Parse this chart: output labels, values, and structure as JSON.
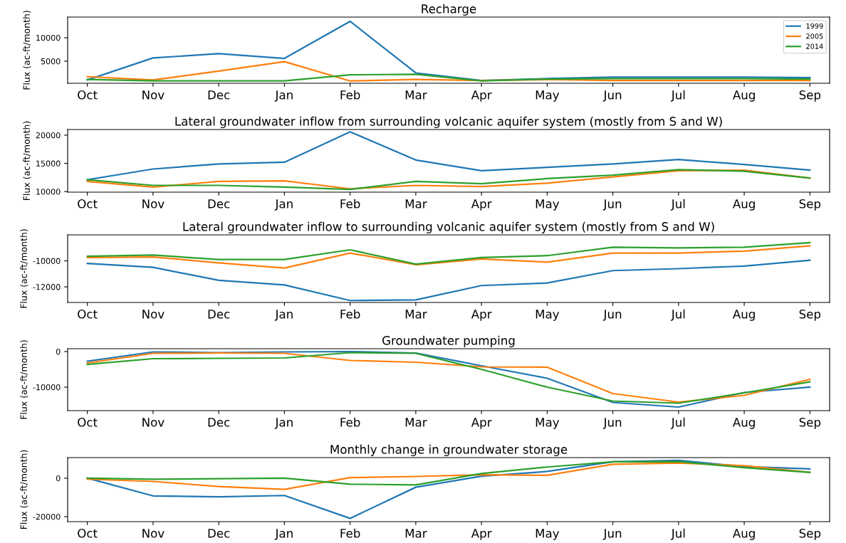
{
  "chart_data": [
    {
      "type": "line",
      "title": "Recharge",
      "ylabel": "Flux (ac-ft/month)",
      "categories": [
        "Oct",
        "Nov",
        "Dec",
        "Jan",
        "Feb",
        "Mar",
        "Apr",
        "May",
        "Jun",
        "Jul",
        "Aug",
        "Sep"
      ],
      "ylim": [
        300,
        14400
      ],
      "yticks": [
        5000,
        10000
      ],
      "legend": "top right",
      "grid": false,
      "series": [
        {
          "name": "1999",
          "color": "#1f77b4",
          "values": [
            1000,
            5700,
            6600,
            5600,
            13500,
            2500,
            900,
            1300,
            1600,
            1600,
            1600,
            1500
          ]
        },
        {
          "name": "2005",
          "color": "#ff7f0e",
          "values": [
            1700,
            1000,
            2900,
            4900,
            800,
            1100,
            900,
            1100,
            900,
            900,
            900,
            900
          ]
        },
        {
          "name": "2014",
          "color": "#2ca02c",
          "values": [
            1100,
            800,
            800,
            800,
            2100,
            2200,
            800,
            1200,
            1300,
            1300,
            1300,
            1200
          ]
        }
      ]
    },
    {
      "type": "line",
      "title": "Lateral groundwater inflow from surrounding volcanic aquifer system (mostly from S and W)",
      "ylabel": "Flux (ac-ft/month)",
      "categories": [
        "Oct",
        "Nov",
        "Dec",
        "Jan",
        "Feb",
        "Mar",
        "Apr",
        "May",
        "Jun",
        "Jul",
        "Aug",
        "Sep"
      ],
      "ylim": [
        9900,
        21000
      ],
      "yticks": [
        10000,
        15000,
        20000
      ],
      "grid": false,
      "series": [
        {
          "color": "#1f77b4",
          "values": [
            12100,
            14000,
            14900,
            15200,
            20600,
            15600,
            13700,
            14300,
            14900,
            15700,
            14800,
            13800
          ]
        },
        {
          "color": "#ff7f0e",
          "values": [
            11800,
            10800,
            11800,
            11900,
            10500,
            11100,
            10900,
            11500,
            12600,
            13700,
            13800,
            12400
          ]
        },
        {
          "color": "#2ca02c",
          "values": [
            12100,
            11100,
            11100,
            10800,
            10400,
            11800,
            11400,
            12300,
            12900,
            13900,
            13600,
            12400
          ]
        }
      ]
    },
    {
      "type": "line",
      "title": "Lateral groundwater inflow to surrounding volcanic aquifer system (mostly from S and W)",
      "ylabel": "Flux (ac-ft/month)",
      "categories": [
        "Oct",
        "Nov",
        "Dec",
        "Jan",
        "Feb",
        "Mar",
        "Apr",
        "May",
        "Jun",
        "Jul",
        "Aug",
        "Sep"
      ],
      "ylim": [
        -13200,
        -8000
      ],
      "yticks": [
        -12000,
        -10000
      ],
      "grid": false,
      "series": [
        {
          "color": "#1f77b4",
          "values": [
            -10200,
            -10500,
            -11500,
            -11850,
            -13050,
            -13000,
            -11900,
            -11700,
            -10750,
            -10600,
            -10400,
            -9950
          ]
        },
        {
          "color": "#ff7f0e",
          "values": [
            -9750,
            -9700,
            -10150,
            -10550,
            -9400,
            -10300,
            -9850,
            -10100,
            -9400,
            -9400,
            -9250,
            -8850
          ]
        },
        {
          "color": "#2ca02c",
          "values": [
            -9650,
            -9550,
            -9900,
            -9900,
            -9150,
            -10250,
            -9750,
            -9600,
            -8950,
            -9000,
            -8950,
            -8600
          ]
        }
      ]
    },
    {
      "type": "line",
      "title": "Groundwater pumping",
      "ylabel": "Flux (ac-ft/month)",
      "categories": [
        "Oct",
        "Nov",
        "Dec",
        "Jan",
        "Feb",
        "Mar",
        "Apr",
        "May",
        "Jun",
        "Jul",
        "Aug",
        "Sep"
      ],
      "ylim": [
        -16600,
        800
      ],
      "yticks": [
        -10000,
        0
      ],
      "grid": false,
      "series": [
        {
          "color": "#1f77b4",
          "values": [
            -2700,
            -100,
            -300,
            -100,
            0,
            -400,
            -4000,
            -7500,
            -14300,
            -15600,
            -11500,
            -10000
          ]
        },
        {
          "color": "#ff7f0e",
          "values": [
            -3200,
            -500,
            -400,
            -500,
            -2500,
            -3000,
            -4300,
            -4400,
            -11800,
            -14200,
            -12300,
            -7800
          ]
        },
        {
          "color": "#2ca02c",
          "values": [
            -3600,
            -2000,
            -1900,
            -1800,
            -300,
            -500,
            -5000,
            -10000,
            -13900,
            -14500,
            -11600,
            -8500
          ]
        }
      ]
    },
    {
      "type": "line",
      "title": "Monthly change in groundwater storage",
      "ylabel": "Flux (ac-ft/month)",
      "categories": [
        "Oct",
        "Nov",
        "Dec",
        "Jan",
        "Feb",
        "Mar",
        "Apr",
        "May",
        "Jun",
        "Jul",
        "Aug",
        "Sep"
      ],
      "ylim": [
        -22600,
        10700
      ],
      "yticks": [
        -20000,
        0
      ],
      "grid": false,
      "series": [
        {
          "color": "#1f77b4",
          "values": [
            0,
            -9200,
            -9700,
            -9000,
            -20900,
            -4700,
            1000,
            3500,
            8500,
            9300,
            6000,
            4800
          ]
        },
        {
          "color": "#ff7f0e",
          "values": [
            -500,
            -1700,
            -4300,
            -5800,
            300,
            900,
            1800,
            1500,
            7200,
            7900,
            6500,
            3000
          ]
        },
        {
          "color": "#2ca02c",
          "values": [
            0,
            -500,
            -300,
            0,
            -3100,
            -3500,
            2400,
            5800,
            8500,
            8600,
            5500,
            3000
          ]
        }
      ]
    }
  ]
}
